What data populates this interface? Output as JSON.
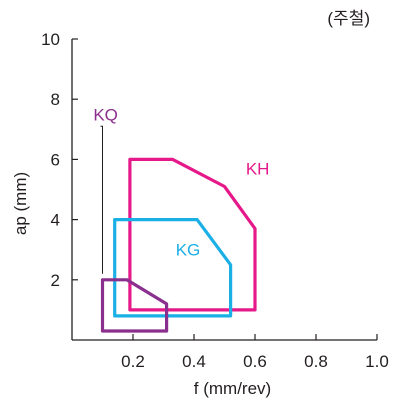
{
  "chart_data": {
    "type": "area",
    "title": "",
    "note": "(주철)",
    "xlabel": "f (mm/rev)",
    "ylabel": "ap (mm)",
    "xlim": [
      0,
      1.0
    ],
    "ylim": [
      0,
      10
    ],
    "x_ticks": [
      {
        "value": 0.2,
        "label": "0.2"
      },
      {
        "value": 0.4,
        "label": "0.4"
      },
      {
        "value": 0.6,
        "label": "0.6"
      },
      {
        "value": 0.8,
        "label": "0.8"
      },
      {
        "value": 1.0,
        "label": "1.0"
      }
    ],
    "y_ticks": [
      {
        "value": 2,
        "label": "2"
      },
      {
        "value": 4,
        "label": "4"
      },
      {
        "value": 6,
        "label": "6"
      },
      {
        "value": 8,
        "label": "8"
      },
      {
        "value": 10,
        "label": "10"
      }
    ],
    "grid": false,
    "legend": "none",
    "series": [
      {
        "name": "KH",
        "color": "#e6198a",
        "points": [
          [
            0.19,
            1.0
          ],
          [
            0.6,
            1.0
          ],
          [
            0.6,
            3.7
          ],
          [
            0.5,
            5.1
          ],
          [
            0.33,
            6.0
          ],
          [
            0.19,
            6.0
          ]
        ],
        "label_at": [
          0.57,
          5.5
        ]
      },
      {
        "name": "KG",
        "color": "#1ab0e6",
        "points": [
          [
            0.14,
            0.8
          ],
          [
            0.52,
            0.8
          ],
          [
            0.52,
            2.5
          ],
          [
            0.41,
            4.0
          ],
          [
            0.14,
            4.0
          ]
        ],
        "label_at": [
          0.34,
          2.8
        ]
      },
      {
        "name": "KQ",
        "color": "#8b2f8e",
        "points": [
          [
            0.1,
            0.3
          ],
          [
            0.31,
            0.3
          ],
          [
            0.31,
            1.2
          ],
          [
            0.18,
            2.0
          ],
          [
            0.1,
            2.0
          ]
        ],
        "label_at": [
          0.07,
          7.3
        ],
        "leader_to": [
          0.1,
          2.0
        ]
      }
    ]
  }
}
